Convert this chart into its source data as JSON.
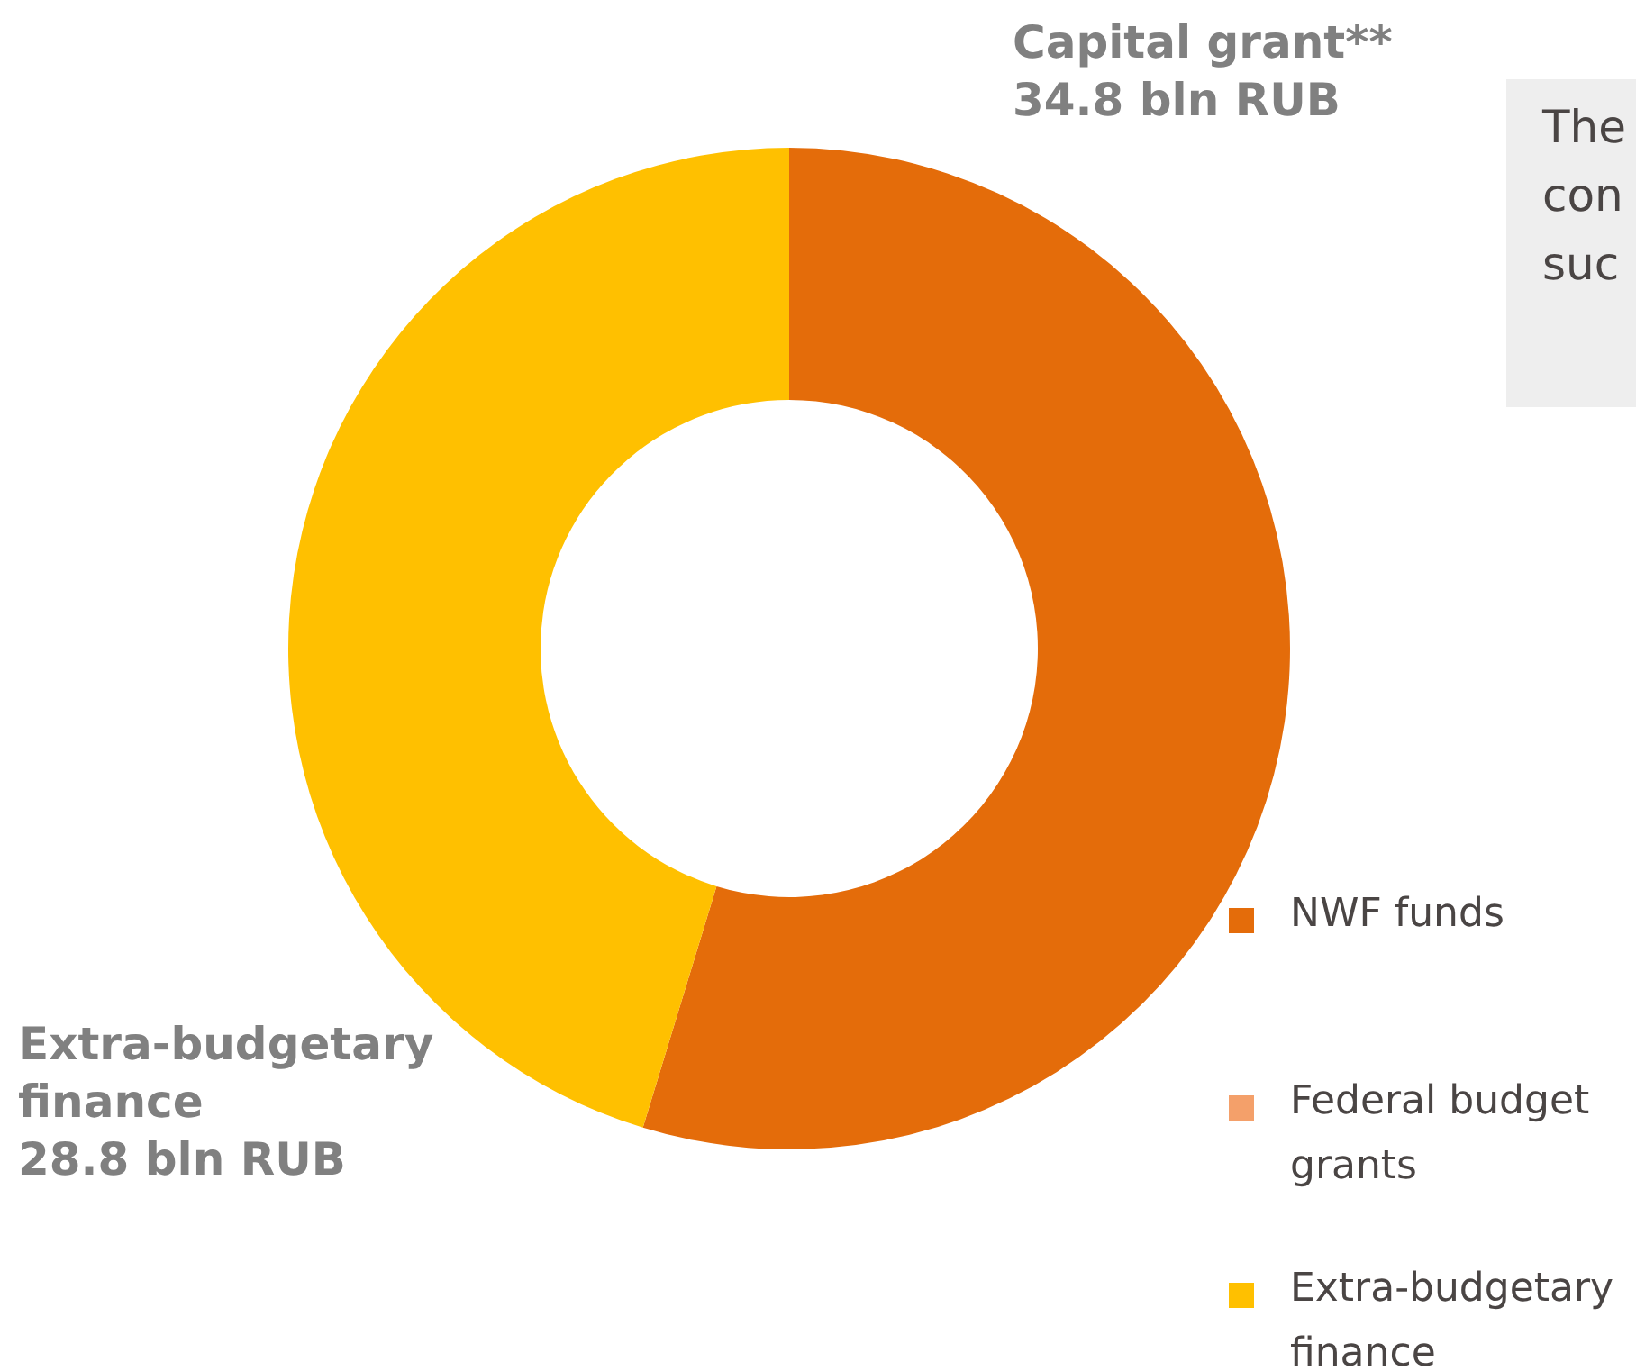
{
  "chart_data": {
    "type": "donut",
    "categories": [
      "NWF funds",
      "Federal budget grants",
      "Extra-budgetary finance"
    ],
    "values": [
      34.8,
      null,
      28.8
    ],
    "colors": [
      "#e46c0a",
      "#f4a06a",
      "#ffc000"
    ],
    "value_labels": [
      "Capital grant**\n34.8 bln RUB",
      null,
      "Extra-budgetary\nfinance\n28.8 bln RUB"
    ],
    "legend": "bottom right",
    "annotations": [
      "The\ncon\nsuc"
    ]
  }
}
